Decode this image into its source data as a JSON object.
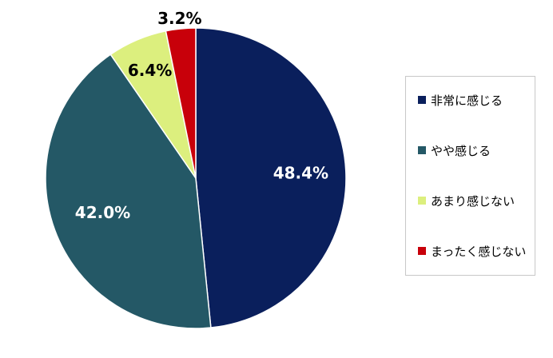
{
  "chart_data": {
    "type": "pie",
    "categories": [
      "非常に感じる",
      "やや感じる",
      "あまり感じない",
      "まったく感じない"
    ],
    "values": [
      48.4,
      42.0,
      6.4,
      3.2
    ],
    "labels": [
      "48.4%",
      "42.0%",
      "6.4%",
      "3.2%"
    ],
    "colors": [
      "#0a1f5c",
      "#245866",
      "#dcef7e",
      "#c8000a"
    ],
    "label_colors": [
      "#ffffff",
      "#ffffff",
      "#000000",
      "#000000"
    ],
    "legend_position": "right",
    "start_angle": "12 o'clock",
    "direction": "clockwise"
  }
}
